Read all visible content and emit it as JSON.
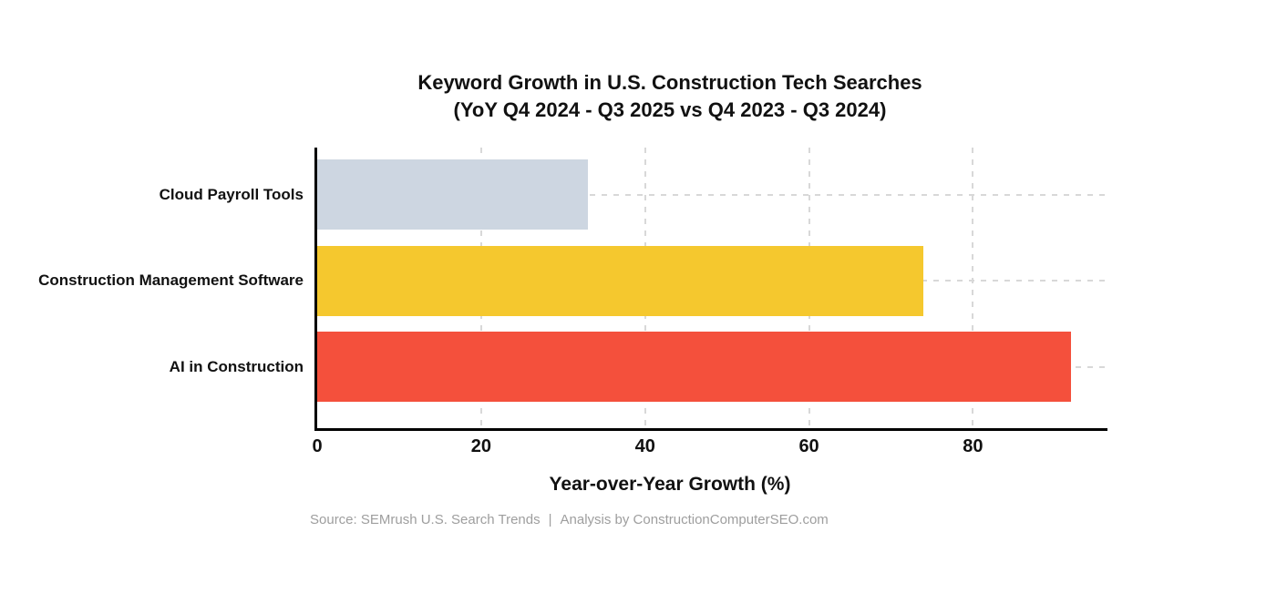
{
  "chart_data": {
    "type": "bar",
    "orientation": "horizontal",
    "title": "Keyword Growth in U.S. Construction Tech Searches",
    "subtitle": "(YoY Q4 2024 - Q3 2025 vs Q4 2023 - Q3 2024)",
    "categories": [
      "Cloud Payroll Tools",
      "Construction Management Software",
      "AI in Construction"
    ],
    "values": [
      33,
      74,
      92
    ],
    "bar_colors": [
      "#CDD6E1",
      "#F5C82E",
      "#F4503C"
    ],
    "xlabel": "Year-over-Year Growth (%)",
    "xticks": [
      0,
      20,
      40,
      60,
      80
    ],
    "xlim": [
      0,
      96.3
    ],
    "grid": {
      "style": "dashed",
      "color": "#D8D8D8"
    },
    "axis_color": "#000000",
    "legend": "none",
    "source": {
      "prefix": "Source: SEMrush U.S. Search Trends",
      "separator": "|",
      "suffix": "Analysis by ConstructionComputerSEO.com"
    }
  }
}
